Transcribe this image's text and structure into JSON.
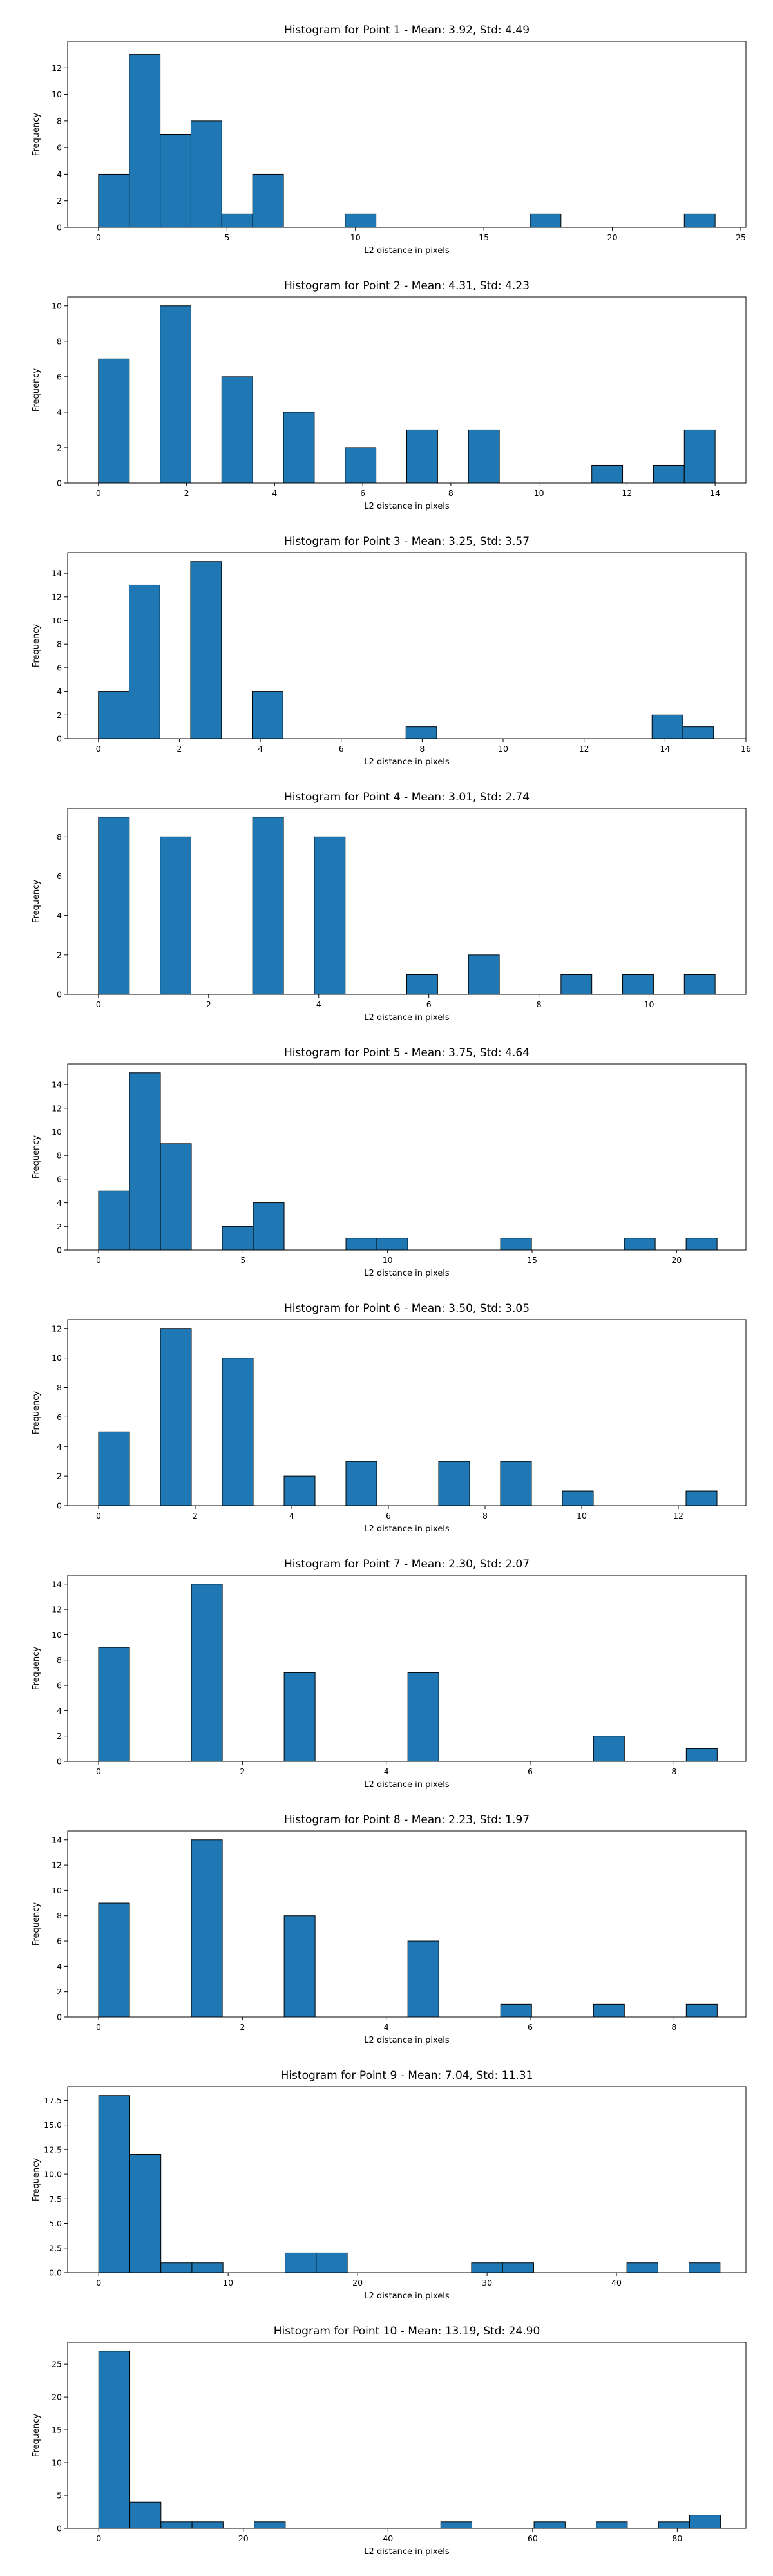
{
  "bar_color": "#1f77b4",
  "chart_data": [
    {
      "type": "bar",
      "title": "Histogram for Point 1 - Mean: 3.92, Std: 4.49",
      "xlabel": "L2 distance in pixels",
      "ylabel": "Frequency",
      "xlim": [
        -1.2,
        25.2
      ],
      "ylim": [
        0,
        14
      ],
      "xticks": [
        0,
        5,
        10,
        15,
        20,
        25
      ],
      "yticks": [
        0,
        2,
        4,
        6,
        8,
        10,
        12
      ],
      "bins": [
        {
          "x0": 0.0,
          "x1": 1.2,
          "count": 4
        },
        {
          "x0": 1.2,
          "x1": 2.4,
          "count": 13
        },
        {
          "x0": 2.4,
          "x1": 3.6,
          "count": 7
        },
        {
          "x0": 3.6,
          "x1": 4.8,
          "count": 8
        },
        {
          "x0": 4.8,
          "x1": 6.0,
          "count": 1
        },
        {
          "x0": 6.0,
          "x1": 7.2,
          "count": 4
        },
        {
          "x0": 9.6,
          "x1": 10.8,
          "count": 1
        },
        {
          "x0": 16.8,
          "x1": 18.0,
          "count": 1
        },
        {
          "x0": 22.8,
          "x1": 24.0,
          "count": 1
        }
      ]
    },
    {
      "type": "bar",
      "title": "Histogram for Point 2 - Mean: 4.31, Std: 4.23",
      "xlabel": "L2 distance in pixels",
      "ylabel": "Frequency",
      "xlim": [
        -0.7,
        14.7
      ],
      "ylim": [
        0,
        10.5
      ],
      "xticks": [
        0,
        2,
        4,
        6,
        8,
        10,
        12,
        14
      ],
      "yticks": [
        0,
        2,
        4,
        6,
        8,
        10
      ],
      "bins": [
        {
          "x0": 0.0,
          "x1": 0.7,
          "count": 7
        },
        {
          "x0": 1.4,
          "x1": 2.1,
          "count": 10
        },
        {
          "x0": 2.8,
          "x1": 3.5,
          "count": 6
        },
        {
          "x0": 4.2,
          "x1": 4.9,
          "count": 4
        },
        {
          "x0": 5.6,
          "x1": 6.3,
          "count": 2
        },
        {
          "x0": 7.0,
          "x1": 7.7,
          "count": 3
        },
        {
          "x0": 8.4,
          "x1": 9.1,
          "count": 3
        },
        {
          "x0": 11.2,
          "x1": 11.9,
          "count": 1
        },
        {
          "x0": 12.6,
          "x1": 13.3,
          "count": 1
        },
        {
          "x0": 13.3,
          "x1": 14.0,
          "count": 3
        }
      ]
    },
    {
      "type": "bar",
      "title": "Histogram for Point 3 - Mean: 3.25, Std: 3.57",
      "xlabel": "L2 distance in pixels",
      "ylabel": "Frequency",
      "xlim": [
        -0.76,
        16.0
      ],
      "ylim": [
        0,
        15.75
      ],
      "xticks": [
        0,
        2,
        4,
        6,
        8,
        10,
        12,
        14,
        16
      ],
      "yticks": [
        0,
        2,
        4,
        6,
        8,
        10,
        12,
        14
      ],
      "bins": [
        {
          "x0": 0.0,
          "x1": 0.76,
          "count": 4
        },
        {
          "x0": 0.76,
          "x1": 1.52,
          "count": 13
        },
        {
          "x0": 2.28,
          "x1": 3.04,
          "count": 15
        },
        {
          "x0": 3.8,
          "x1": 4.56,
          "count": 4
        },
        {
          "x0": 7.6,
          "x1": 8.36,
          "count": 1
        },
        {
          "x0": 13.68,
          "x1": 14.44,
          "count": 2
        },
        {
          "x0": 14.44,
          "x1": 15.2,
          "count": 1
        }
      ]
    },
    {
      "type": "bar",
      "title": "Histogram for Point 4 - Mean: 3.01, Std: 2.74",
      "xlabel": "L2 distance in pixels",
      "ylabel": "Frequency",
      "xlim": [
        -0.56,
        11.76
      ],
      "ylim": [
        0,
        9.45
      ],
      "xticks": [
        0,
        2,
        4,
        6,
        8,
        10
      ],
      "yticks": [
        0,
        2,
        4,
        6,
        8
      ],
      "bins": [
        {
          "x0": 0.0,
          "x1": 0.56,
          "count": 9
        },
        {
          "x0": 1.12,
          "x1": 1.68,
          "count": 8
        },
        {
          "x0": 2.8,
          "x1": 3.36,
          "count": 9
        },
        {
          "x0": 3.92,
          "x1": 4.48,
          "count": 8
        },
        {
          "x0": 5.6,
          "x1": 6.16,
          "count": 1
        },
        {
          "x0": 6.72,
          "x1": 7.28,
          "count": 2
        },
        {
          "x0": 8.4,
          "x1": 8.96,
          "count": 1
        },
        {
          "x0": 9.52,
          "x1": 10.08,
          "count": 1
        },
        {
          "x0": 10.64,
          "x1": 11.2,
          "count": 1
        }
      ]
    },
    {
      "type": "bar",
      "title": "Histogram for Point 5 - Mean: 3.75, Std: 4.64",
      "xlabel": "L2 distance in pixels",
      "ylabel": "Frequency",
      "xlim": [
        -1.07,
        22.4
      ],
      "ylim": [
        0,
        15.75
      ],
      "xticks": [
        0,
        5,
        10,
        15,
        20
      ],
      "yticks": [
        0,
        2,
        4,
        6,
        8,
        10,
        12,
        14
      ],
      "bins": [
        {
          "x0": 0.0,
          "x1": 1.07,
          "count": 5
        },
        {
          "x0": 1.07,
          "x1": 2.14,
          "count": 15
        },
        {
          "x0": 2.14,
          "x1": 3.21,
          "count": 9
        },
        {
          "x0": 4.28,
          "x1": 5.35,
          "count": 2
        },
        {
          "x0": 5.35,
          "x1": 6.42,
          "count": 4
        },
        {
          "x0": 8.56,
          "x1": 9.63,
          "count": 1
        },
        {
          "x0": 9.63,
          "x1": 10.7,
          "count": 1
        },
        {
          "x0": 13.91,
          "x1": 14.98,
          "count": 1
        },
        {
          "x0": 18.19,
          "x1": 19.26,
          "count": 1
        },
        {
          "x0": 20.33,
          "x1": 21.4,
          "count": 1
        }
      ]
    },
    {
      "type": "bar",
      "title": "Histogram for Point 6 - Mean: 3.50, Std: 3.05",
      "xlabel": "L2 distance in pixels",
      "ylabel": "Frequency",
      "xlim": [
        -0.64,
        13.4
      ],
      "ylim": [
        0,
        12.6
      ],
      "xticks": [
        0,
        2,
        4,
        6,
        8,
        10,
        12
      ],
      "yticks": [
        0,
        2,
        4,
        6,
        8,
        10,
        12
      ],
      "bins": [
        {
          "x0": 0.0,
          "x1": 0.64,
          "count": 5
        },
        {
          "x0": 1.28,
          "x1": 1.92,
          "count": 12
        },
        {
          "x0": 2.56,
          "x1": 3.2,
          "count": 10
        },
        {
          "x0": 3.84,
          "x1": 4.48,
          "count": 2
        },
        {
          "x0": 5.12,
          "x1": 5.76,
          "count": 3
        },
        {
          "x0": 7.04,
          "x1": 7.68,
          "count": 3
        },
        {
          "x0": 8.32,
          "x1": 8.96,
          "count": 3
        },
        {
          "x0": 9.6,
          "x1": 10.24,
          "count": 1
        },
        {
          "x0": 12.16,
          "x1": 12.8,
          "count": 1
        }
      ]
    },
    {
      "type": "bar",
      "title": "Histogram for Point 7 - Mean: 2.30, Std: 2.07",
      "xlabel": "L2 distance in pixels",
      "ylabel": "Frequency",
      "xlim": [
        -0.43,
        9.0
      ],
      "ylim": [
        0,
        14.7
      ],
      "xticks": [
        0,
        2,
        4,
        6,
        8
      ],
      "yticks": [
        0,
        2,
        4,
        6,
        8,
        10,
        12,
        14
      ],
      "bins": [
        {
          "x0": 0.0,
          "x1": 0.43,
          "count": 9
        },
        {
          "x0": 1.29,
          "x1": 1.72,
          "count": 14
        },
        {
          "x0": 2.58,
          "x1": 3.01,
          "count": 7
        },
        {
          "x0": 4.3,
          "x1": 4.73,
          "count": 7
        },
        {
          "x0": 6.88,
          "x1": 7.31,
          "count": 2
        },
        {
          "x0": 8.17,
          "x1": 8.6,
          "count": 1
        }
      ]
    },
    {
      "type": "bar",
      "title": "Histogram for Point 8 - Mean: 2.23, Std: 1.97",
      "xlabel": "L2 distance in pixels",
      "ylabel": "Frequency",
      "xlim": [
        -0.43,
        9.0
      ],
      "ylim": [
        0,
        14.7
      ],
      "xticks": [
        0,
        2,
        4,
        6,
        8
      ],
      "yticks": [
        0,
        2,
        4,
        6,
        8,
        10,
        12,
        14
      ],
      "bins": [
        {
          "x0": 0.0,
          "x1": 0.43,
          "count": 9
        },
        {
          "x0": 1.29,
          "x1": 1.72,
          "count": 14
        },
        {
          "x0": 2.58,
          "x1": 3.01,
          "count": 8
        },
        {
          "x0": 4.3,
          "x1": 4.73,
          "count": 6
        },
        {
          "x0": 5.59,
          "x1": 6.02,
          "count": 1
        },
        {
          "x0": 6.88,
          "x1": 7.31,
          "count": 1
        },
        {
          "x0": 8.17,
          "x1": 8.6,
          "count": 1
        }
      ]
    },
    {
      "type": "bar",
      "title": "Histogram for Point 9 - Mean: 7.04, Std: 11.31",
      "xlabel": "L2 distance in pixels",
      "ylabel": "Frequency",
      "xlim": [
        -2.4,
        50.0
      ],
      "ylim": [
        0,
        18.9
      ],
      "xticks": [
        0,
        10,
        20,
        30,
        40
      ],
      "ytick_labels": [
        "0.0",
        "2.5",
        "5.0",
        "7.5",
        "10.0",
        "12.5",
        "15.0",
        "17.5"
      ],
      "yticks": [
        0,
        2.5,
        5,
        7.5,
        10,
        12.5,
        15,
        17.5
      ],
      "bins": [
        {
          "x0": 0.0,
          "x1": 2.4,
          "count": 18
        },
        {
          "x0": 2.4,
          "x1": 4.8,
          "count": 12
        },
        {
          "x0": 4.8,
          "x1": 7.2,
          "count": 1
        },
        {
          "x0": 7.2,
          "x1": 9.6,
          "count": 1
        },
        {
          "x0": 14.4,
          "x1": 16.8,
          "count": 2
        },
        {
          "x0": 16.8,
          "x1": 19.2,
          "count": 2
        },
        {
          "x0": 28.8,
          "x1": 31.2,
          "count": 1
        },
        {
          "x0": 31.2,
          "x1": 33.6,
          "count": 1
        },
        {
          "x0": 40.8,
          "x1": 43.2,
          "count": 1
        },
        {
          "x0": 45.6,
          "x1": 48.0,
          "count": 1
        }
      ]
    },
    {
      "type": "bar",
      "title": "Histogram for Point 10 - Mean: 13.19, Std: 24.90",
      "xlabel": "L2 distance in pixels",
      "ylabel": "Frequency",
      "xlim": [
        -4.3,
        89.5
      ],
      "ylim": [
        0,
        28.35
      ],
      "xticks": [
        0,
        20,
        40,
        60,
        80
      ],
      "yticks": [
        0,
        5,
        10,
        15,
        20,
        25
      ],
      "bins": [
        {
          "x0": 0.0,
          "x1": 4.3,
          "count": 27
        },
        {
          "x0": 4.3,
          "x1": 8.6,
          "count": 4
        },
        {
          "x0": 8.6,
          "x1": 12.9,
          "count": 1
        },
        {
          "x0": 12.9,
          "x1": 17.2,
          "count": 1
        },
        {
          "x0": 21.5,
          "x1": 25.8,
          "count": 1
        },
        {
          "x0": 47.3,
          "x1": 51.6,
          "count": 1
        },
        {
          "x0": 60.2,
          "x1": 64.5,
          "count": 1
        },
        {
          "x0": 68.8,
          "x1": 73.1,
          "count": 1
        },
        {
          "x0": 77.4,
          "x1": 81.7,
          "count": 1
        },
        {
          "x0": 81.7,
          "x1": 86.0,
          "count": 2
        }
      ]
    }
  ]
}
